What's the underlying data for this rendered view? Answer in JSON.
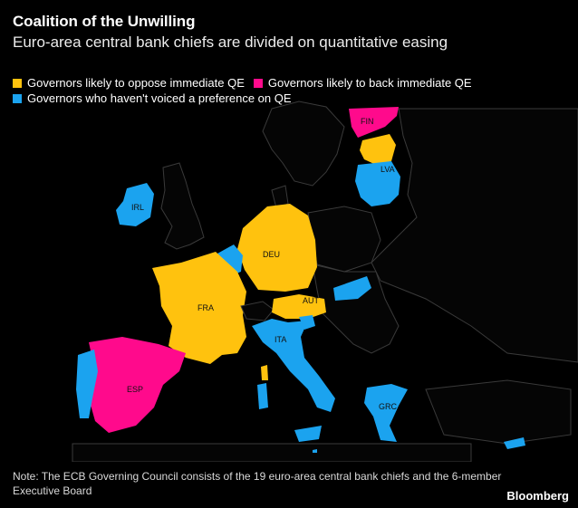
{
  "header": {
    "title": "Coalition of the Unwilling",
    "subtitle": "Euro-area central bank chiefs are divided on quantitative easing"
  },
  "legend": {
    "items": [
      {
        "label": "Governors likely to oppose immediate QE",
        "color": "#ffc20e"
      },
      {
        "label": "Governors likely to back immediate QE",
        "color": "#ff0a8c"
      },
      {
        "label": "Governors who haven't voiced a preference on QE",
        "color": "#1ba3ef"
      }
    ]
  },
  "map": {
    "labels": {
      "fin": "FIN",
      "lva": "LVA",
      "irl": "IRL",
      "deu": "DEU",
      "fra": "FRA",
      "aut": "AUT",
      "ita": "ITA",
      "esp": "ESP",
      "grc": "GRC"
    },
    "colors": {
      "oppose": "#ffc20e",
      "back": "#ff0a8c",
      "neutral": "#1ba3ef",
      "land": "#050505",
      "border": "#3a3a3a"
    }
  },
  "footer": {
    "note": "Note: The ECB Governing Council consists of the 19 euro-area central bank chiefs and the 6-member Executive Board",
    "source": "Bloomberg"
  }
}
